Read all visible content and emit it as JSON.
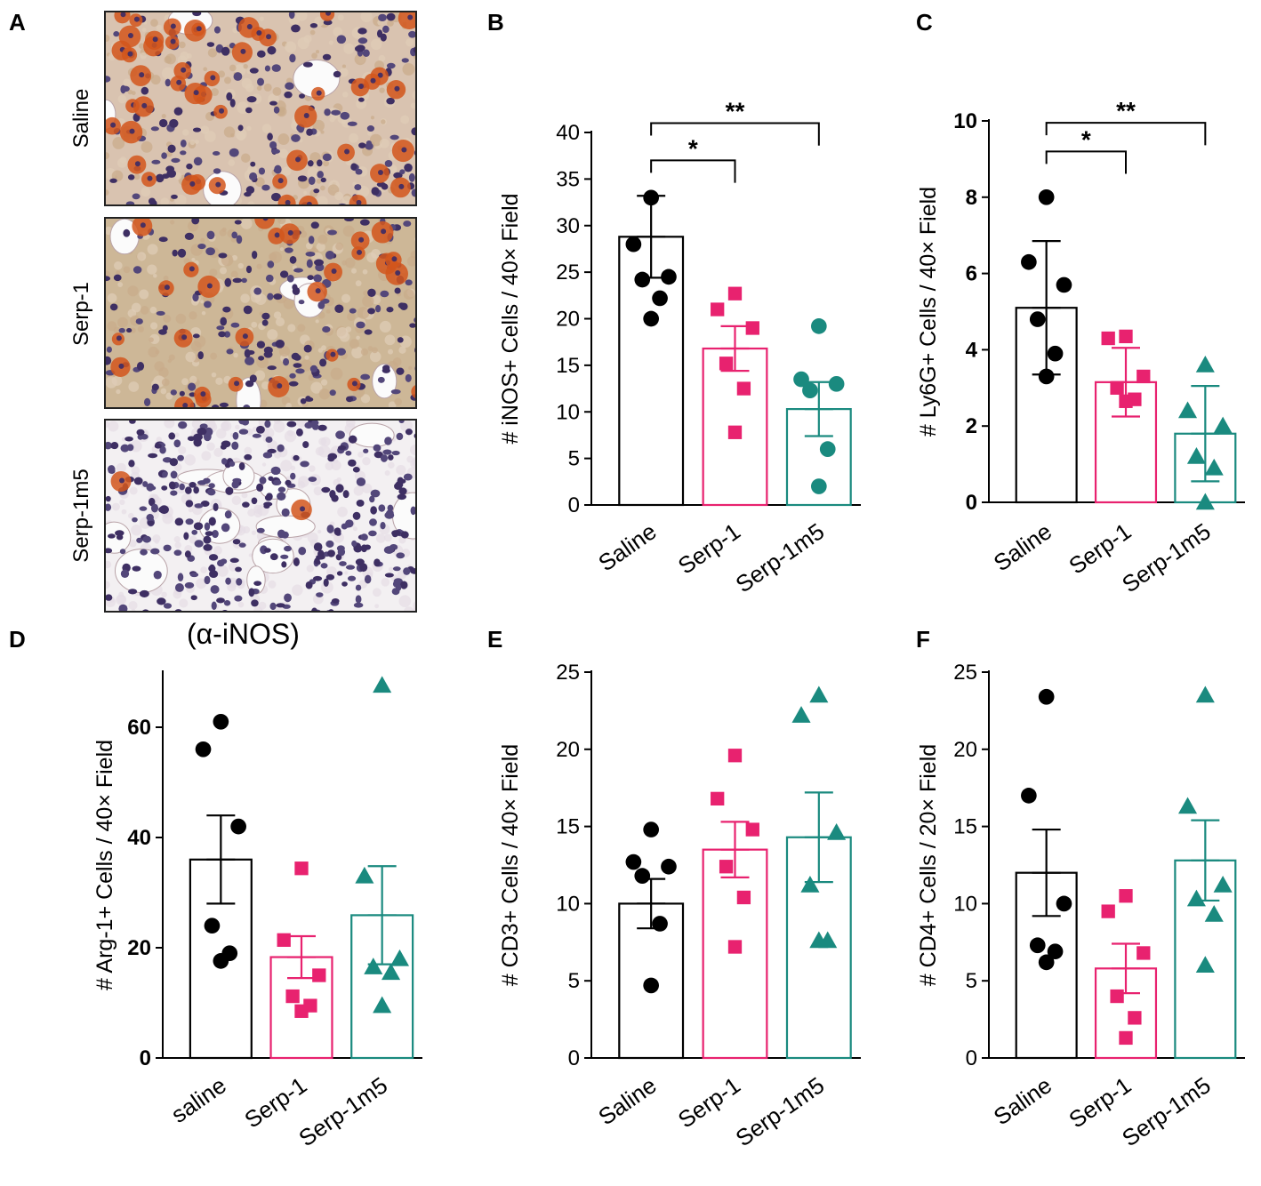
{
  "micrographs": {
    "panel_letter": "A",
    "caption": "(α-iNOS)",
    "rows": [
      {
        "label": "Saline",
        "stain_density": 0.8
      },
      {
        "label": "Serp-1",
        "stain_density": 0.45
      },
      {
        "label": "Serp-1m5",
        "stain_density": 0.03
      }
    ]
  },
  "colors": {
    "Saline": "#000000",
    "Serp-1": "#e8226f",
    "Serp-1m5": "#1a8a7f"
  },
  "chart_data": [
    {
      "panel": "B",
      "type": "bar",
      "ylabel": "# iNOS+ Cells / 40× Field",
      "categories": [
        "Saline",
        "Serp-1",
        "Serp-1m5"
      ],
      "ylim": [
        0,
        40
      ],
      "yticks": [
        0,
        5,
        10,
        15,
        20,
        25,
        30,
        35,
        40
      ],
      "values": [
        28.8,
        16.8,
        10.3
      ],
      "errors": [
        4.4,
        2.4,
        2.9
      ],
      "markers": [
        "circle",
        "square",
        "circle"
      ],
      "points": [
        [
          33,
          28,
          24.5,
          24.2,
          22.2,
          20
        ],
        [
          22.7,
          21,
          19,
          15.2,
          12.5,
          7.8
        ],
        [
          19.2,
          13.5,
          13,
          12.3,
          6,
          2
        ]
      ],
      "significance": [
        {
          "from": 0,
          "to": 1,
          "label": "*",
          "y": 37
        },
        {
          "from": 0,
          "to": 2,
          "label": "**",
          "y": 41
        }
      ]
    },
    {
      "panel": "C",
      "type": "bar",
      "ylabel": "# Ly6G+ Cells / 40× Field",
      "categories": [
        "Saline",
        "Serp-1",
        "Serp-1m5"
      ],
      "ylim": [
        0,
        10
      ],
      "yticks": [
        0,
        2,
        4,
        6,
        8,
        10
      ],
      "values": [
        5.1,
        3.15,
        1.8
      ],
      "errors": [
        1.75,
        0.9,
        1.25
      ],
      "markers": [
        "circle",
        "square",
        "triangle"
      ],
      "points": [
        [
          8,
          6.3,
          5.7,
          4.8,
          3.9,
          3.3
        ],
        [
          4.35,
          4.3,
          3.3,
          3,
          2.7,
          2.65
        ],
        [
          3.6,
          2.4,
          2,
          1.2,
          0.9,
          0
        ]
      ],
      "significance": [
        {
          "from": 0,
          "to": 1,
          "label": "*",
          "y": 9.2
        },
        {
          "from": 0,
          "to": 2,
          "label": "**",
          "y": 9.95
        }
      ]
    },
    {
      "panel": "D",
      "type": "bar",
      "ylabel": "# Arg-1+ Cells / 40×  Field",
      "categories": [
        "saline",
        "Serp-1",
        "Serp-1m5"
      ],
      "ylim": [
        0,
        70
      ],
      "yticks": [
        0,
        20,
        40,
        60
      ],
      "values": [
        36,
        18.3,
        25.9
      ],
      "errors": [
        8,
        3.8,
        8.9
      ],
      "markers": [
        "circle",
        "square",
        "triangle"
      ],
      "points": [
        [
          61,
          56,
          42,
          24,
          19,
          17.6
        ],
        [
          34.4,
          21.4,
          15,
          11.2,
          9.5,
          8.5
        ],
        [
          67.6,
          33,
          18,
          16.5,
          15.5,
          9.5
        ]
      ],
      "significance": []
    },
    {
      "panel": "E",
      "type": "bar",
      "ylabel": "# CD3+ Cells / 40× Field",
      "categories": [
        "Saline",
        "Serp-1",
        "Serp-1m5"
      ],
      "ylim": [
        0,
        25
      ],
      "yticks": [
        0,
        5,
        10,
        15,
        20,
        25
      ],
      "values": [
        10,
        13.5,
        14.3
      ],
      "errors": [
        1.6,
        1.8,
        2.9
      ],
      "markers": [
        "circle",
        "square",
        "triangle"
      ],
      "points": [
        [
          14.8,
          12.7,
          12.4,
          11.8,
          8.7,
          4.7
        ],
        [
          19.6,
          16.8,
          14.8,
          12.4,
          10.4,
          7.2
        ],
        [
          23.5,
          22.2,
          14.6,
          11.2,
          7.6,
          7.6
        ]
      ],
      "significance": []
    },
    {
      "panel": "F",
      "type": "bar",
      "ylabel": "# CD4+ Cells / 20× Field",
      "categories": [
        "Saline",
        "Serp-1",
        "Serp-1m5"
      ],
      "ylim": [
        0,
        25
      ],
      "yticks": [
        0,
        5,
        10,
        15,
        20,
        25
      ],
      "values": [
        12,
        5.8,
        12.8
      ],
      "errors": [
        2.8,
        1.6,
        2.6
      ],
      "markers": [
        "circle",
        "square",
        "triangle"
      ],
      "points": [
        [
          23.4,
          17,
          10,
          7.3,
          6.9,
          6.2
        ],
        [
          10.5,
          9.5,
          6.8,
          4,
          2.6,
          1.3
        ],
        [
          23.5,
          16.3,
          11.2,
          10.3,
          9.3,
          6
        ]
      ],
      "significance": []
    }
  ]
}
